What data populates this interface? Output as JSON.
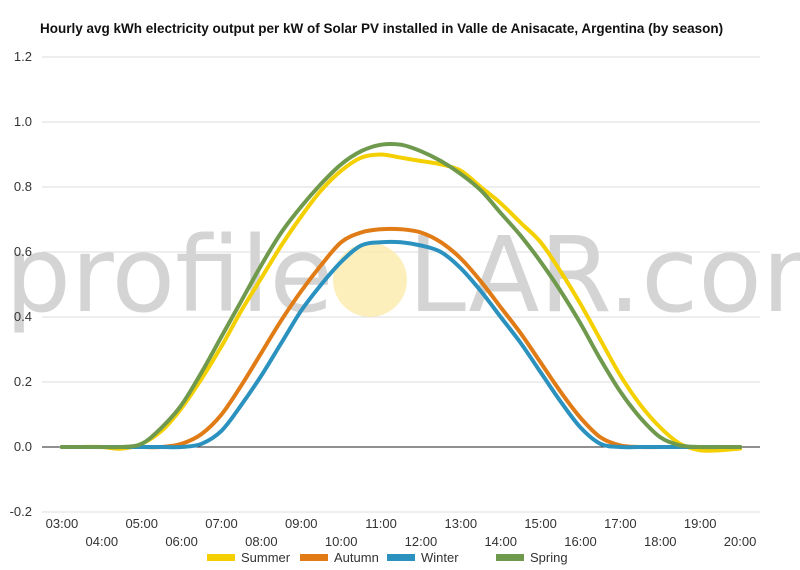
{
  "chart_data": {
    "type": "line",
    "title": "Hourly avg kWh electricity output per kW of Solar PV installed in Valle de Anisacate, Argentina (by season)",
    "watermark": {
      "left": "profile",
      "right": "LAR.com"
    },
    "ylim": [
      -0.2,
      1.2
    ],
    "yticks": [
      "-0.2",
      "0.0",
      "0.2",
      "0.4",
      "0.6",
      "0.8",
      "1.0",
      "1.2"
    ],
    "ytick_values": [
      -0.2,
      0,
      0.2,
      0.4,
      0.6,
      0.8,
      1.0,
      1.2
    ],
    "x": [
      3,
      3.5,
      4,
      4.5,
      5,
      5.5,
      6,
      6.5,
      7,
      7.5,
      8,
      8.5,
      9,
      9.5,
      10,
      10.5,
      11,
      11.5,
      12,
      12.5,
      13,
      13.5,
      14,
      14.5,
      15,
      15.5,
      16,
      16.5,
      17,
      17.5,
      18,
      18.5,
      19,
      19.5,
      20
    ],
    "xlim": [
      2.5,
      20.5
    ],
    "xticks": [
      {
        "x": 3,
        "label": "03:00"
      },
      {
        "x": 4,
        "label": "04:00"
      },
      {
        "x": 5,
        "label": "05:00"
      },
      {
        "x": 6,
        "label": "06:00"
      },
      {
        "x": 7,
        "label": "07:00"
      },
      {
        "x": 8,
        "label": "08:00"
      },
      {
        "x": 9,
        "label": "09:00"
      },
      {
        "x": 10,
        "label": "10:00"
      },
      {
        "x": 11,
        "label": "11:00"
      },
      {
        "x": 12,
        "label": "12:00"
      },
      {
        "x": 13,
        "label": "13:00"
      },
      {
        "x": 14,
        "label": "14:00"
      },
      {
        "x": 15,
        "label": "15:00"
      },
      {
        "x": 16,
        "label": "16:00"
      },
      {
        "x": 17,
        "label": "17:00"
      },
      {
        "x": 18,
        "label": "18:00"
      },
      {
        "x": 19,
        "label": "19:00"
      },
      {
        "x": 20,
        "label": "20:00"
      }
    ],
    "series": [
      {
        "name": "Summer",
        "color": "#f5d000",
        "values": [
          0,
          0,
          0,
          -0.005,
          0.01,
          0.05,
          0.12,
          0.21,
          0.31,
          0.42,
          0.52,
          0.62,
          0.71,
          0.79,
          0.85,
          0.89,
          0.9,
          0.89,
          0.88,
          0.87,
          0.85,
          0.8,
          0.75,
          0.69,
          0.63,
          0.54,
          0.44,
          0.33,
          0.22,
          0.13,
          0.06,
          0.01,
          -0.01,
          -0.01,
          -0.005
        ]
      },
      {
        "name": "Autumn",
        "color": "#e07b16",
        "values": [
          0,
          0,
          0,
          0,
          0,
          0,
          0.01,
          0.04,
          0.1,
          0.19,
          0.29,
          0.39,
          0.48,
          0.56,
          0.63,
          0.66,
          0.67,
          0.67,
          0.66,
          0.63,
          0.58,
          0.51,
          0.43,
          0.35,
          0.26,
          0.17,
          0.09,
          0.03,
          0.005,
          0,
          0,
          0,
          0,
          0,
          0
        ]
      },
      {
        "name": "Winter",
        "color": "#2b92c0",
        "values": [
          0,
          0,
          0,
          0,
          0,
          0,
          0,
          0.01,
          0.05,
          0.13,
          0.22,
          0.32,
          0.42,
          0.5,
          0.57,
          0.62,
          0.63,
          0.63,
          0.62,
          0.6,
          0.55,
          0.48,
          0.4,
          0.32,
          0.23,
          0.14,
          0.06,
          0.01,
          0,
          0,
          0,
          0,
          0,
          0,
          0
        ]
      },
      {
        "name": "Spring",
        "color": "#6f9a4d",
        "values": [
          0,
          0,
          0,
          0,
          0.01,
          0.06,
          0.13,
          0.23,
          0.34,
          0.45,
          0.56,
          0.66,
          0.74,
          0.81,
          0.87,
          0.91,
          0.93,
          0.93,
          0.91,
          0.88,
          0.84,
          0.79,
          0.72,
          0.65,
          0.57,
          0.48,
          0.38,
          0.27,
          0.17,
          0.09,
          0.03,
          0.005,
          0,
          0,
          0
        ]
      }
    ],
    "grid": true,
    "legend_position": "bottom"
  }
}
